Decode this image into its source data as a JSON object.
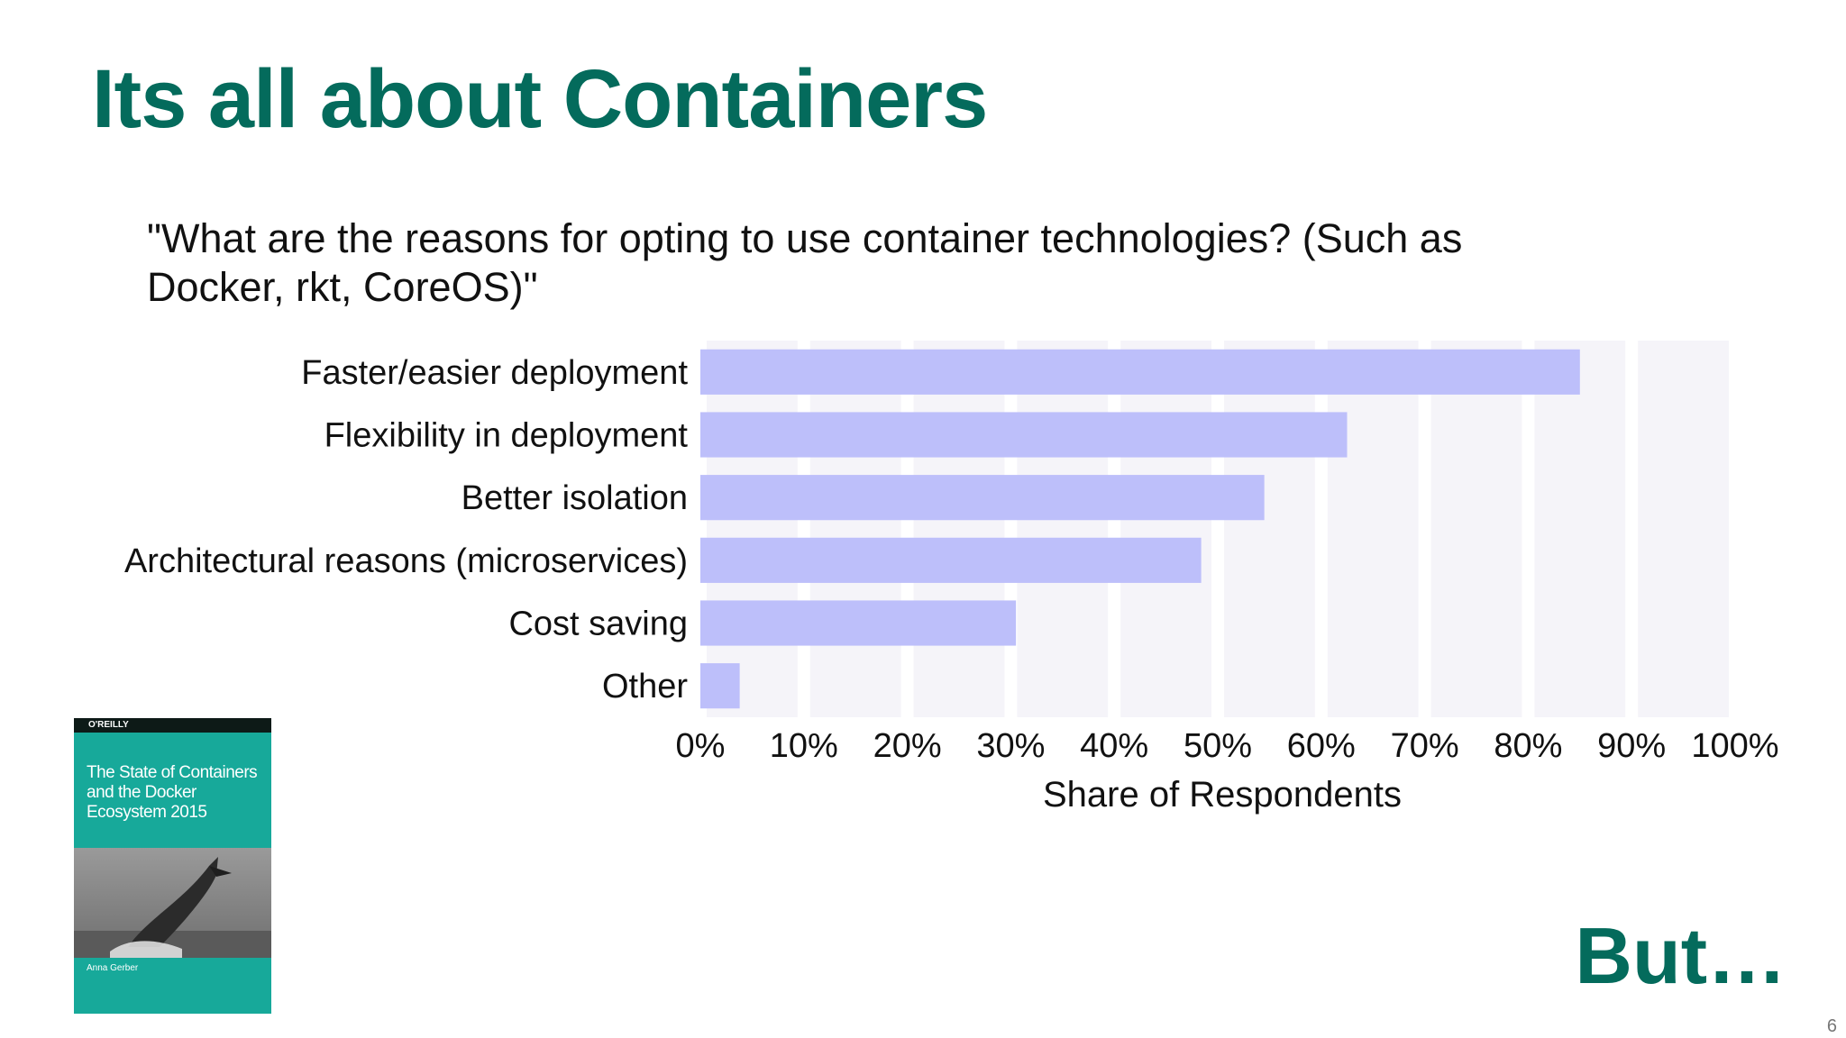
{
  "slide": {
    "title": "Its all about Containers",
    "question": "\"What are the reasons for opting to use container technologies? (Such as Docker, rkt, CoreOS)\"",
    "closing": "But…",
    "page_number": "6"
  },
  "book": {
    "publisher": "O'REILLY",
    "title": "The State of Containers and the Docker Ecosystem 2015",
    "author": "Anna Gerber"
  },
  "colors": {
    "title": "#046b5c",
    "bar": "#bdbffa",
    "column_band": "#f5f4f9",
    "book": "#17a99a"
  },
  "chart_data": {
    "type": "bar",
    "orientation": "horizontal",
    "categories": [
      "Faster/easier deployment",
      "Flexibility in deployment",
      "Better isolation",
      "Architectural reasons (microservices)",
      "Cost saving",
      "Other"
    ],
    "values": [
      85,
      62.5,
      54.5,
      48.4,
      30.5,
      3.8
    ],
    "xlim": [
      0,
      100
    ],
    "xticks": [
      "0%",
      "10%",
      "20%",
      "30%",
      "40%",
      "50%",
      "60%",
      "70%",
      "80%",
      "90%",
      "100%"
    ],
    "xlabel": "Share of Respondents",
    "grid": "vertical bands",
    "legend": "none"
  }
}
